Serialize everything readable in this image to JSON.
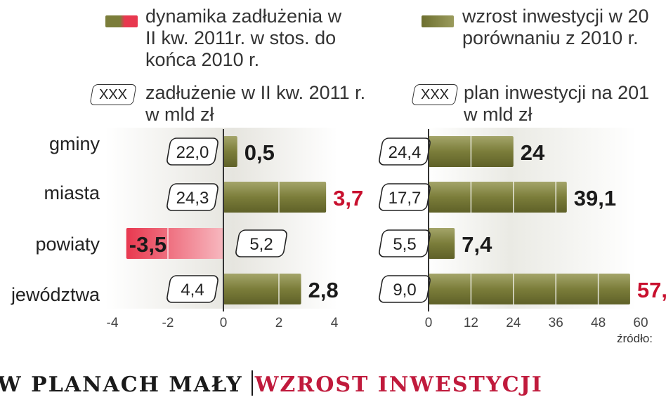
{
  "legend": {
    "left_dynamics": "dynamika zadłużenia w\nII kw. 2011r. w stos. do\nkońca 2010 r.",
    "left_debt": "zadłużenie w II kw. 2011 r.\nw mld zł",
    "right_growth": "wzrost inwestycji w 20\nporównaniu z 2010 r.",
    "right_plan": "plan inwestycji na 201\nw mld zł",
    "xxx_left": "XXX",
    "xxx_right": "XXX"
  },
  "categories": [
    "gminy",
    "miasta",
    "powiaty",
    "jewództwa"
  ],
  "headline": {
    "part1": "W PLANACH MAŁY",
    "part2": "WZROST INWESTYCJI",
    "color1": "#1a1a1a",
    "color2": "#c01a3c"
  },
  "source": "źródło:",
  "colors": {
    "olive": "#7b7d3a",
    "olive_light": "#a4a56a",
    "red": "#e8384f",
    "red_light": "#f7b8bf",
    "highlight_text": "#c8102e"
  },
  "chart_data": [
    {
      "type": "bar",
      "orientation": "horizontal",
      "categories": [
        "gminy",
        "miasta",
        "powiaty",
        "jewództwa"
      ],
      "series": [
        {
          "name": "dynamika zadłużenia w II kw. 2011r. w stos. do końca 2010 r.",
          "values": [
            0.5,
            3.7,
            -3.5,
            2.8
          ]
        }
      ],
      "value_labels": [
        "0,5",
        "3,7",
        "-3,5",
        "2,8"
      ],
      "value_label_colors": [
        "#1a1a1a",
        "#c8102e",
        "#1a1a1a",
        "#1a1a1a"
      ],
      "box_labels": [
        "22,0",
        "24,3",
        "5,2",
        "4,4"
      ],
      "box_series_name": "zadłużenie w II kw. 2011 r. w mld zł",
      "xlim": [
        -4,
        4
      ],
      "xticks": [
        "-4",
        "-2",
        "0",
        "2",
        "4"
      ],
      "xtick_values": [
        -4,
        -2,
        0,
        2,
        4
      ]
    },
    {
      "type": "bar",
      "orientation": "horizontal",
      "categories": [
        "gminy",
        "miasta",
        "powiaty",
        "jewództwa"
      ],
      "series": [
        {
          "name": "wzrost inwestycji w 20 porównaniu z 2010 r.",
          "values": [
            24,
            39.1,
            7.4,
            57
          ]
        }
      ],
      "value_labels": [
        "24",
        "39,1",
        "7,4",
        "57,"
      ],
      "value_label_colors": [
        "#1a1a1a",
        "#1a1a1a",
        "#1a1a1a",
        "#c8102e"
      ],
      "box_labels": [
        "24,4",
        "17,7",
        "5,5",
        "9,0"
      ],
      "box_series_name": "plan inwestycji na 201 w mld zł",
      "xlim": [
        0,
        60
      ],
      "xticks": [
        "0",
        "12",
        "24",
        "36",
        "48",
        "60"
      ],
      "xtick_values": [
        0,
        12,
        24,
        36,
        48,
        60
      ]
    }
  ]
}
